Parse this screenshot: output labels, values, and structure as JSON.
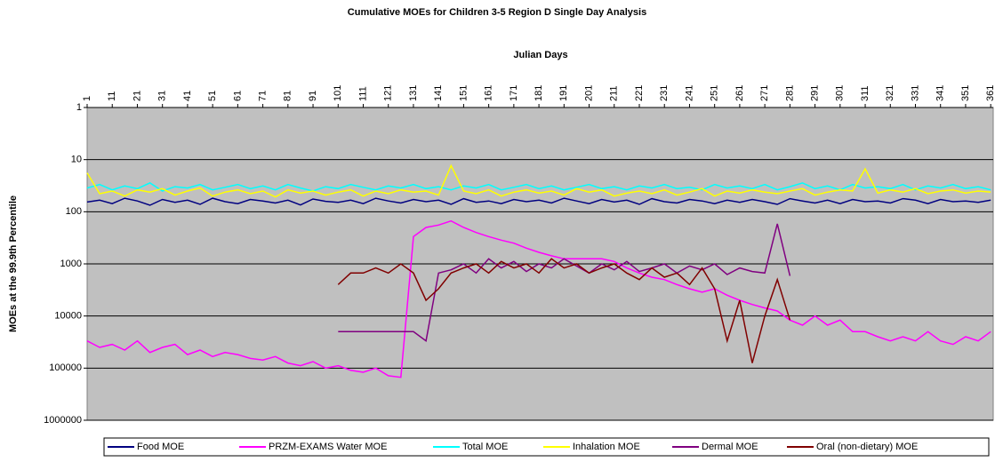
{
  "chart_data": {
    "type": "line",
    "title": "Cumulative MOEs for Children 3-5 Region D Single Day Analysis",
    "x_label": "Julian Days",
    "y_label": "MOEs at the 99.9th Percentile",
    "log_scale": true,
    "y_reversed": true,
    "grid": true,
    "background": "#c0c0c0",
    "legend": "bottom",
    "xlim": [
      1,
      362
    ],
    "xticks": [
      1,
      11,
      21,
      31,
      41,
      51,
      61,
      71,
      81,
      91,
      101,
      111,
      121,
      131,
      141,
      151,
      161,
      171,
      181,
      191,
      201,
      211,
      221,
      231,
      241,
      251,
      261,
      271,
      281,
      291,
      301,
      311,
      321,
      331,
      341,
      351,
      361
    ],
    "ylim": [
      1,
      1000000
    ],
    "yticks": [
      1,
      10,
      100,
      1000,
      10000,
      100000,
      1000000
    ],
    "x": [
      1,
      6,
      11,
      16,
      21,
      26,
      31,
      36,
      41,
      46,
      51,
      56,
      61,
      66,
      71,
      76,
      81,
      86,
      91,
      96,
      101,
      106,
      111,
      116,
      121,
      126,
      131,
      136,
      141,
      146,
      151,
      156,
      161,
      166,
      171,
      176,
      181,
      186,
      191,
      196,
      201,
      206,
      211,
      216,
      221,
      226,
      231,
      236,
      241,
      246,
      251,
      256,
      261,
      266,
      271,
      276,
      281,
      286,
      291,
      296,
      301,
      306,
      311,
      316,
      321,
      326,
      331,
      336,
      341,
      346,
      351,
      356,
      361
    ],
    "series": [
      {
        "name": "Food MOE",
        "color": "#000080",
        "values": [
          65,
          60,
          70,
          55,
          62,
          75,
          58,
          66,
          60,
          72,
          55,
          64,
          70,
          58,
          62,
          68,
          60,
          74,
          57,
          63,
          66,
          60,
          70,
          55,
          62,
          68,
          58,
          64,
          60,
          72,
          56,
          66,
          62,
          70,
          58,
          64,
          60,
          68,
          55,
          62,
          70,
          58,
          65,
          60,
          72,
          56,
          64,
          68,
          58,
          62,
          70,
          60,
          66,
          58,
          64,
          72,
          56,
          62,
          68,
          60,
          70,
          58,
          64,
          62,
          68,
          56,
          60,
          70,
          58,
          64,
          62,
          66,
          60
        ]
      },
      {
        "name": "PRZM-EXAMS Water MOE",
        "color": "#ff00ff",
        "values": [
          30000,
          40000,
          35000,
          45000,
          30000,
          50000,
          40000,
          35000,
          55000,
          45000,
          60000,
          50000,
          55000,
          65000,
          70000,
          60000,
          80000,
          90000,
          75000,
          100000,
          90000,
          110000,
          120000,
          100000,
          140000,
          150000,
          300,
          200,
          180,
          150,
          200,
          250,
          300,
          350,
          400,
          500,
          600,
          700,
          800,
          800,
          800,
          800,
          900,
          1200,
          1500,
          1800,
          2000,
          2500,
          3000,
          3500,
          3000,
          4000,
          5000,
          6000,
          7000,
          8000,
          12000,
          15000,
          10000,
          15000,
          12000,
          20000,
          20000,
          25000,
          30000,
          25000,
          30000,
          20000,
          30000,
          35000,
          25000,
          30000,
          20000
        ]
      },
      {
        "name": "Total MOE",
        "color": "#00ffff",
        "values": [
          35,
          30,
          38,
          32,
          36,
          28,
          40,
          33,
          35,
          30,
          38,
          34,
          30,
          36,
          32,
          38,
          30,
          35,
          40,
          33,
          36,
          30,
          34,
          38,
          32,
          35,
          30,
          36,
          33,
          38,
          32,
          35,
          30,
          38,
          34,
          30,
          36,
          32,
          38,
          34,
          30,
          36,
          33,
          38,
          32,
          35,
          30,
          36,
          34,
          38,
          30,
          35,
          32,
          36,
          30,
          38,
          33,
          28,
          36,
          32,
          38,
          30,
          35,
          33,
          36,
          30,
          38,
          32,
          35,
          30,
          36,
          33,
          38
        ]
      },
      {
        "name": "Inhalation MOE",
        "color": "#ffff00",
        "values": [
          18,
          45,
          40,
          50,
          38,
          42,
          36,
          48,
          40,
          35,
          50,
          42,
          38,
          45,
          40,
          52,
          38,
          44,
          40,
          48,
          42,
          38,
          50,
          40,
          45,
          38,
          42,
          40,
          48,
          13,
          40,
          45,
          38,
          50,
          42,
          38,
          44,
          40,
          48,
          36,
          42,
          38,
          50,
          44,
          40,
          45,
          38,
          48,
          42,
          36,
          50,
          40,
          44,
          38,
          42,
          45,
          40,
          36,
          48,
          42,
          38,
          40,
          15,
          44,
          38,
          42,
          36,
          45,
          40,
          38,
          44,
          40,
          42
        ]
      },
      {
        "name": "Dermal MOE",
        "color": "#800080",
        "values": [
          null,
          null,
          null,
          null,
          null,
          null,
          null,
          null,
          null,
          null,
          null,
          null,
          null,
          null,
          null,
          null,
          null,
          null,
          null,
          null,
          20000,
          20000,
          20000,
          20000,
          20000,
          20000,
          20000,
          30000,
          1500,
          1300,
          1000,
          1500,
          800,
          1200,
          900,
          1400,
          1000,
          1200,
          800,
          1100,
          1500,
          1000,
          1300,
          900,
          1400,
          1200,
          1000,
          1500,
          1100,
          1300,
          1000,
          1600,
          1200,
          1400,
          1500,
          170,
          1700,
          null,
          null,
          null,
          null,
          null,
          null,
          null,
          null,
          null,
          null,
          null,
          null,
          null,
          null,
          null,
          null
        ]
      },
      {
        "name": "Oral (non-dietary) MOE",
        "color": "#800000",
        "values": [
          null,
          null,
          null,
          null,
          null,
          null,
          null,
          null,
          null,
          null,
          null,
          null,
          null,
          null,
          null,
          null,
          null,
          null,
          null,
          null,
          2500,
          1500,
          1500,
          1200,
          1500,
          1000,
          1500,
          5000,
          3000,
          1500,
          1200,
          1000,
          1500,
          900,
          1200,
          1000,
          1500,
          800,
          1200,
          1000,
          1500,
          1200,
          1000,
          1500,
          2000,
          1200,
          1800,
          1500,
          2500,
          1200,
          3000,
          30000,
          5000,
          80000,
          10000,
          2000,
          12000,
          null,
          null,
          null,
          null,
          null,
          null,
          null,
          null,
          null,
          null,
          null,
          null,
          null,
          null,
          null,
          null
        ]
      }
    ]
  }
}
